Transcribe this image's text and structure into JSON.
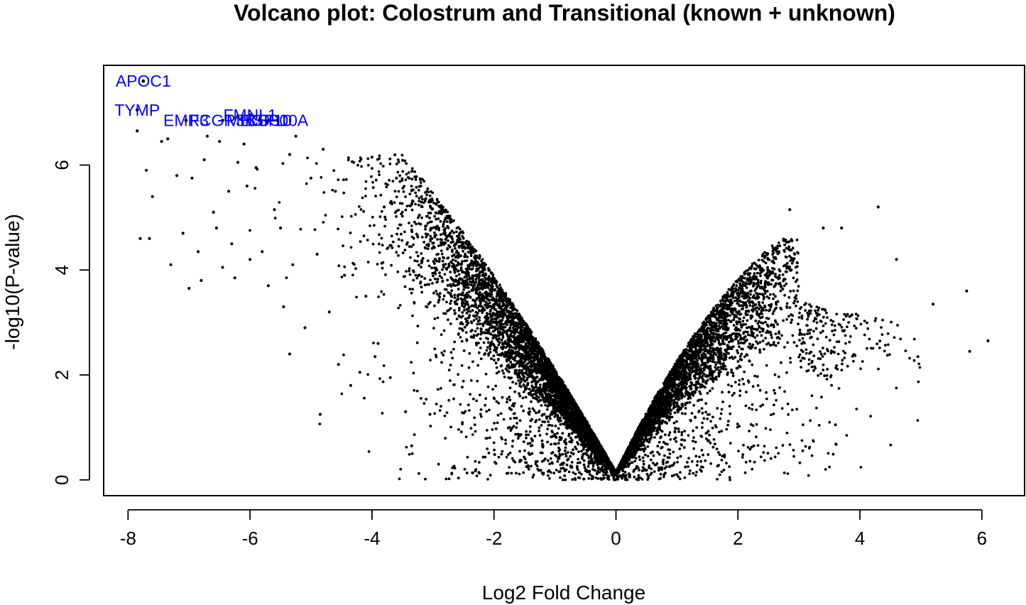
{
  "chart_data": {
    "type": "scatter",
    "title": "Volcano plot: Colostrum and Transitional (known + unknown)",
    "xlabel": "Log2 Fold Change",
    "ylabel": "-log10(P-value)",
    "xlim": [
      -8.4,
      6.7
    ],
    "ylim": [
      -0.3,
      7.9
    ],
    "x_ticks": [
      -8,
      -6,
      -4,
      -2,
      0,
      2,
      4,
      6
    ],
    "x_tick_labels": [
      "-8",
      "-6",
      "-4",
      "-2",
      "0",
      "2",
      "4",
      "6"
    ],
    "y_ticks": [
      0,
      2,
      4,
      6
    ],
    "y_tick_labels": [
      "0",
      "2",
      "4",
      "6"
    ],
    "grid": false,
    "point_color": "#000000",
    "label_color": "#0000ff",
    "highlighted": [
      {
        "label": "APOC1",
        "x": -7.75,
        "y": 7.6
      },
      {
        "label": "TYMP",
        "x": -7.85,
        "y": 7.05
      },
      {
        "label": "EMR3",
        "x": -7.05,
        "y": 6.85
      },
      {
        "label": "FCGR3B",
        "x": -6.45,
        "y": 6.85
      },
      {
        "label": "FMNL1",
        "x": -6.0,
        "y": 6.95
      },
      {
        "label": "MEGF10",
        "x": -5.85,
        "y": 6.85
      },
      {
        "label": "LSP1",
        "x": -5.7,
        "y": 6.85
      },
      {
        "label": "CD300A",
        "x": -5.55,
        "y": 6.85
      }
    ],
    "points": [
      [
        -7.85,
        6.65
      ],
      [
        -7.7,
        5.9
      ],
      [
        -7.8,
        4.6
      ],
      [
        -7.65,
        4.6
      ],
      [
        -7.6,
        5.4
      ],
      [
        -7.45,
        6.45
      ],
      [
        -7.35,
        6.5
      ],
      [
        -7.3,
        4.1
      ],
      [
        -7.2,
        5.8
      ],
      [
        -7.1,
        4.7
      ],
      [
        -7.0,
        3.65
      ],
      [
        -6.95,
        5.75
      ],
      [
        -6.85,
        4.35
      ],
      [
        -6.8,
        3.8
      ],
      [
        -6.75,
        6.1
      ],
      [
        -6.7,
        6.55
      ],
      [
        -6.6,
        5.1
      ],
      [
        -6.55,
        4.8
      ],
      [
        -6.5,
        6.45
      ],
      [
        -6.45,
        4.05
      ],
      [
        -6.35,
        5.5
      ],
      [
        -6.3,
        4.5
      ],
      [
        -6.25,
        3.85
      ],
      [
        -6.2,
        6.05
      ],
      [
        -6.1,
        6.4
      ],
      [
        -6.05,
        5.6
      ],
      [
        -6.0,
        4.2
      ],
      [
        -5.9,
        5.95
      ],
      [
        -5.8,
        4.35
      ],
      [
        -5.7,
        3.7
      ],
      [
        -5.6,
        5.15
      ],
      [
        -5.5,
        4.8
      ],
      [
        -5.45,
        3.3
      ],
      [
        -5.35,
        6.2
      ],
      [
        -5.3,
        4.1
      ],
      [
        -5.25,
        6.55
      ],
      [
        -5.1,
        2.9
      ],
      [
        -5.0,
        5.75
      ],
      [
        -4.9,
        4.3
      ],
      [
        -4.85,
        1.25
      ],
      [
        -4.8,
        6.3
      ],
      [
        -4.7,
        3.2
      ],
      [
        -4.6,
        5.5
      ],
      [
        -4.55,
        2.2
      ],
      [
        -4.45,
        3.9
      ],
      [
        -4.3,
        6.05
      ],
      [
        -4.2,
        2.05
      ],
      [
        -4.1,
        3.5
      ],
      [
        -4.0,
        6.15
      ],
      [
        -3.9,
        2.6
      ],
      [
        -3.8,
        5.2
      ],
      [
        -3.7,
        1.95
      ],
      [
        -3.6,
        5.75
      ],
      [
        -3.45,
        1.3
      ],
      [
        -3.35,
        0.65
      ],
      [
        -3.2,
        5.6
      ],
      [
        -3.05,
        1.25
      ],
      [
        -5.35,
        2.4
      ],
      [
        -4.35,
        1.8
      ],
      [
        -3.95,
        2.35
      ],
      [
        4.3,
        5.2
      ],
      [
        5.2,
        3.35
      ],
      [
        5.75,
        3.6
      ],
      [
        5.8,
        2.45
      ],
      [
        6.1,
        2.65
      ],
      [
        3.6,
        1.05
      ],
      [
        2.85,
        5.15
      ],
      [
        3.4,
        4.8
      ],
      [
        3.7,
        4.8
      ],
      [
        4.6,
        4.2
      ],
      [
        4.95,
        2.35
      ]
    ],
    "n_background_points": 9000
  }
}
